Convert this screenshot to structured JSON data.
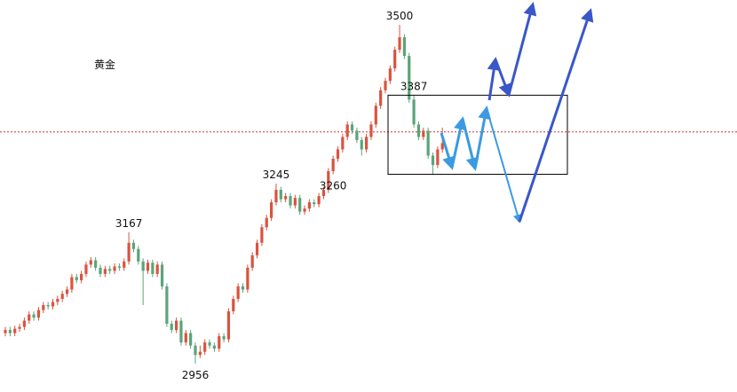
{
  "chart_data": {
    "type": "candlestick",
    "title": "黄金",
    "open": [
      3005,
      3010,
      3005,
      3012,
      3015,
      3025,
      3035,
      3030,
      3042,
      3050,
      3048,
      3055,
      3060,
      3068,
      3075,
      3095,
      3090,
      3100,
      3115,
      3122,
      3110,
      3100,
      3108,
      3105,
      3112,
      3110,
      3120,
      3150,
      3140,
      3120,
      3105,
      3118,
      3100,
      3115,
      3080,
      3020,
      3010,
      3025,
      2990,
      3005,
      2985,
      2970,
      2975,
      2990,
      2985,
      2980,
      3000,
      2995,
      3040,
      3060,
      3080,
      3075,
      3110,
      3130,
      3150,
      3175,
      3190,
      3215,
      3235,
      3220,
      3225,
      3210,
      3222,
      3200,
      3205,
      3215,
      3212,
      3225,
      3235,
      3265,
      3285,
      3300,
      3320,
      3340,
      3330,
      3315,
      3300,
      3320,
      3340,
      3370,
      3395,
      3410,
      3430,
      3460,
      3480,
      3450,
      3380,
      3340,
      3320,
      3330,
      3290,
      3275,
      3300
    ],
    "high": [
      3015,
      3015,
      3017,
      3020,
      3030,
      3040,
      3040,
      3047,
      3055,
      3055,
      3060,
      3065,
      3073,
      3080,
      3100,
      3100,
      3105,
      3120,
      3127,
      3127,
      3115,
      3113,
      3113,
      3117,
      3117,
      3125,
      3167,
      3155,
      3145,
      3125,
      3123,
      3123,
      3120,
      3120,
      3085,
      3025,
      3030,
      3030,
      3010,
      3010,
      2990,
      2985,
      2995,
      2995,
      2990,
      3005,
      3005,
      3045,
      3065,
      3085,
      3085,
      3115,
      3135,
      3155,
      3180,
      3195,
      3220,
      3245,
      3240,
      3230,
      3230,
      3227,
      3227,
      3210,
      3220,
      3220,
      3230,
      3240,
      3270,
      3290,
      3305,
      3325,
      3345,
      3345,
      3335,
      3320,
      3325,
      3345,
      3375,
      3400,
      3415,
      3435,
      3465,
      3500,
      3485,
      3455,
      3387,
      3345,
      3335,
      3335,
      3295,
      3305,
      3335
    ],
    "low": [
      3000,
      3000,
      3000,
      3007,
      3010,
      3020,
      3025,
      3025,
      3037,
      3043,
      3043,
      3050,
      3055,
      3063,
      3070,
      3085,
      3085,
      3095,
      3110,
      3105,
      3095,
      3095,
      3100,
      3100,
      3105,
      3105,
      3115,
      3135,
      3115,
      3050,
      3100,
      3095,
      3095,
      3075,
      3015,
      3005,
      3005,
      2985,
      2985,
      2980,
      2956,
      2965,
      2970,
      2980,
      2975,
      2975,
      2990,
      2990,
      3035,
      3055,
      3070,
      3070,
      3105,
      3125,
      3145,
      3170,
      3185,
      3210,
      3215,
      3215,
      3205,
      3205,
      3195,
      3195,
      3200,
      3207,
      3207,
      3220,
      3230,
      3260,
      3280,
      3295,
      3315,
      3325,
      3310,
      3290,
      3295,
      3315,
      3335,
      3365,
      3390,
      3405,
      3425,
      3455,
      3445,
      3375,
      3335,
      3315,
      3315,
      3285,
      3260,
      3270,
      3295
    ],
    "close": [
      3010,
      3005,
      3012,
      3015,
      3025,
      3035,
      3030,
      3042,
      3050,
      3048,
      3055,
      3060,
      3068,
      3075,
      3095,
      3090,
      3100,
      3115,
      3122,
      3110,
      3100,
      3108,
      3105,
      3112,
      3110,
      3120,
      3150,
      3140,
      3120,
      3105,
      3118,
      3100,
      3115,
      3080,
      3020,
      3010,
      3025,
      2990,
      3005,
      2985,
      2970,
      2975,
      2990,
      2985,
      2980,
      3000,
      2995,
      3040,
      3060,
      3080,
      3075,
      3110,
      3130,
      3150,
      3175,
      3190,
      3215,
      3235,
      3220,
      3225,
      3210,
      3222,
      3200,
      3205,
      3215,
      3212,
      3225,
      3235,
      3265,
      3285,
      3300,
      3320,
      3340,
      3330,
      3315,
      3300,
      3320,
      3340,
      3370,
      3395,
      3410,
      3430,
      3460,
      3480,
      3450,
      3380,
      3340,
      3320,
      3330,
      3290,
      3275,
      3300,
      3310
    ],
    "up_color": "#d9543f",
    "down_color": "#5aa47a",
    "price_labels": [
      3500,
      3387,
      3260,
      3245,
      3167,
      2956
    ],
    "price_line": 3328,
    "price_line_color": "#c0392b"
  }
}
